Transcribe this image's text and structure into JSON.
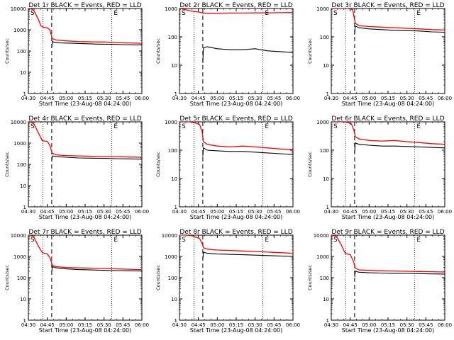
{
  "figure": {
    "x_tick_labels": [
      "04:30",
      "04:45",
      "05:00",
      "05:15",
      "05:30",
      "05:45",
      "06:00"
    ],
    "y_label": "Counts/sec",
    "x_label": "Start Time (23-Aug-08 04:24:00)",
    "corner_marks": {
      "left": "S",
      "right": "E"
    }
  },
  "colors": {
    "events": "#000000",
    "lld": "#ff0000",
    "axes": "#000000"
  },
  "chart_data": [
    {
      "type": "line",
      "title": "Det 1r  BLACK = Events, RED = LLD",
      "xlabel": "Start Time (23-Aug-08 04:24:00)",
      "ylabel": "Counts/sec",
      "x_unit": "minutes after 04:30",
      "xlim": [
        0,
        90
      ],
      "yscale": "log",
      "ylim": [
        1,
        10000
      ],
      "y_tick_labels": [
        "1",
        "10",
        "100",
        "1000",
        "10000"
      ],
      "x_tick_labels": [
        "04:30",
        "04:45",
        "05:00",
        "05:15",
        "05:30",
        "05:45",
        "06:00"
      ],
      "dotted_markers_x": [
        11.5,
        66
      ],
      "dashed_marker_x": 18.5,
      "series": [
        {
          "name": "LLD",
          "color": "#ff0000",
          "x": [
            0,
            4,
            8,
            10,
            12,
            15,
            17,
            18,
            19,
            22,
            30,
            40,
            50,
            60,
            70,
            80,
            90
          ],
          "y": [
            10000,
            9000,
            3000,
            1500,
            1300,
            1250,
            1000,
            600,
            380,
            330,
            300,
            280,
            270,
            265,
            250,
            240,
            230
          ]
        },
        {
          "name": "Events",
          "color": "#000000",
          "x": [
            18.5,
            19,
            20,
            25,
            35,
            45,
            55,
            65,
            75,
            85,
            90
          ],
          "y": [
            140,
            290,
            260,
            240,
            230,
            220,
            210,
            205,
            200,
            195,
            195
          ]
        }
      ]
    },
    {
      "type": "line",
      "title": "Det 2r  BLACK = Events, RED = LLD",
      "xlabel": "Start Time (23-Aug-08 04:24:00)",
      "ylabel": "Counts/sec",
      "x_unit": "minutes after 04:30",
      "xlim": [
        0,
        90
      ],
      "yscale": "log",
      "ylim": [
        1,
        1000
      ],
      "y_tick_labels": [
        "1",
        "10",
        "100",
        "1000"
      ],
      "x_tick_labels": [
        "04:30",
        "04:45",
        "05:00",
        "05:15",
        "05:30",
        "05:45",
        "06:00"
      ],
      "dotted_markers_x": [
        11.5,
        66
      ],
      "dashed_marker_x": 18.5,
      "series": [
        {
          "name": "LLD",
          "color": "#ff0000",
          "x": [
            0,
            5,
            10,
            15,
            18,
            22,
            30,
            40,
            50,
            60,
            70,
            80,
            90
          ],
          "y": [
            1000,
            900,
            800,
            760,
            700,
            680,
            680,
            690,
            690,
            700,
            700,
            710,
            720
          ]
        },
        {
          "name": "Events",
          "color": "#000000",
          "x": [
            18.5,
            19,
            22,
            30,
            40,
            50,
            60,
            70,
            80,
            90
          ],
          "y": [
            12,
            40,
            45,
            38,
            35,
            35,
            38,
            32,
            30,
            28
          ]
        }
      ]
    },
    {
      "type": "line",
      "title": "Det 3r  BLACK = Events, RED = LLD",
      "xlabel": "Start Time (23-Aug-08 04:24:00)",
      "ylabel": "Counts/sec",
      "x_unit": "minutes after 04:30",
      "xlim": [
        0,
        90
      ],
      "yscale": "log",
      "ylim": [
        1,
        1000
      ],
      "y_tick_labels": [
        "1",
        "10",
        "100",
        "1000"
      ],
      "x_tick_labels": [
        "04:30",
        "04:45",
        "05:00",
        "05:15",
        "05:30",
        "05:45",
        "06:00"
      ],
      "dotted_markers_x": [
        11.5,
        66
      ],
      "dashed_marker_x": 18.5,
      "series": [
        {
          "name": "LLD",
          "color": "#ff0000",
          "x": [
            0,
            8,
            14,
            17,
            19,
            22,
            30,
            40,
            50,
            60,
            70,
            80,
            90
          ],
          "y": [
            1000,
            1000,
            1000,
            900,
            300,
            250,
            230,
            220,
            210,
            200,
            190,
            180,
            175
          ]
        },
        {
          "name": "Events",
          "color": "#000000",
          "x": [
            18.5,
            19,
            22,
            30,
            40,
            50,
            60,
            70,
            80,
            90
          ],
          "y": [
            120,
            240,
            210,
            190,
            180,
            170,
            165,
            160,
            150,
            145
          ]
        }
      ]
    },
    {
      "type": "line",
      "title": "Det 4r  BLACK = Events, RED = LLD",
      "xlabel": "Start Time (23-Aug-08 04:24:00)",
      "ylabel": "Counts/sec",
      "x_unit": "minutes after 04:30",
      "xlim": [
        0,
        90
      ],
      "yscale": "log",
      "ylim": [
        1,
        10000
      ],
      "y_tick_labels": [
        "1",
        "10",
        "100",
        "1000",
        "10000"
      ],
      "x_tick_labels": [
        "04:30",
        "04:45",
        "05:00",
        "05:15",
        "05:30",
        "05:45",
        "06:00"
      ],
      "dotted_markers_x": [
        11.5,
        66
      ],
      "dashed_marker_x": 18.5,
      "series": [
        {
          "name": "LLD",
          "color": "#ff0000",
          "x": [
            0,
            4,
            8,
            11,
            15,
            17,
            18,
            19,
            22,
            30,
            40,
            50,
            60,
            70,
            80,
            90
          ],
          "y": [
            10000,
            9000,
            3000,
            1300,
            1200,
            800,
            500,
            330,
            280,
            260,
            250,
            240,
            235,
            230,
            220,
            215
          ]
        },
        {
          "name": "Events",
          "color": "#000000",
          "x": [
            18.5,
            19,
            22,
            30,
            40,
            50,
            60,
            70,
            80,
            90
          ],
          "y": [
            150,
            250,
            230,
            215,
            200,
            195,
            190,
            185,
            180,
            175
          ]
        }
      ]
    },
    {
      "type": "line",
      "title": "Det 5r  BLACK = Events, RED = LLD",
      "xlabel": "Start Time (23-Aug-08 04:24:00)",
      "ylabel": "Counts/sec",
      "x_unit": "minutes after 04:30",
      "xlim": [
        0,
        90
      ],
      "yscale": "log",
      "ylim": [
        1,
        1000
      ],
      "y_tick_labels": [
        "1",
        "10",
        "100",
        "1000"
      ],
      "x_tick_labels": [
        "04:30",
        "04:45",
        "05:00",
        "05:15",
        "05:30",
        "05:45",
        "06:00"
      ],
      "dotted_markers_x": [
        11.5,
        66
      ],
      "dashed_marker_x": 18.5,
      "series": [
        {
          "name": "LLD",
          "color": "#ff0000",
          "x": [
            0,
            8,
            13,
            16,
            18,
            19,
            22,
            30,
            40,
            50,
            60,
            70,
            80,
            90
          ],
          "y": [
            1000,
            1000,
            900,
            800,
            450,
            200,
            160,
            140,
            130,
            140,
            130,
            120,
            110,
            105
          ]
        },
        {
          "name": "Events",
          "color": "#000000",
          "x": [
            18.5,
            19,
            22,
            30,
            40,
            50,
            60,
            70,
            80,
            90
          ],
          "y": [
            60,
            120,
            100,
            95,
            90,
            90,
            85,
            80,
            75,
            70
          ]
        }
      ]
    },
    {
      "type": "line",
      "title": "Det 6r  BLACK = Events, RED = LLD",
      "xlabel": "Start Time (23-Aug-08 04:24:00)",
      "ylabel": "Counts/sec",
      "x_unit": "minutes after 04:30",
      "xlim": [
        0,
        90
      ],
      "yscale": "log",
      "ylim": [
        1,
        1000
      ],
      "y_tick_labels": [
        "1",
        "10",
        "100",
        "1000"
      ],
      "x_tick_labels": [
        "04:30",
        "04:45",
        "05:00",
        "05:15",
        "05:30",
        "05:45",
        "06:00"
      ],
      "dotted_markers_x": [
        11.5,
        66
      ],
      "dashed_marker_x": 18.5,
      "series": [
        {
          "name": "LLD",
          "color": "#ff0000",
          "x": [
            0,
            8,
            13,
            16,
            18,
            19,
            22,
            30,
            40,
            50,
            60,
            70,
            80,
            90
          ],
          "y": [
            1000,
            1000,
            950,
            850,
            500,
            300,
            250,
            220,
            210,
            220,
            200,
            185,
            170,
            160
          ]
        },
        {
          "name": "Events",
          "color": "#000000",
          "x": [
            18.5,
            19,
            22,
            30,
            40,
            50,
            60,
            70,
            80,
            90
          ],
          "y": [
            80,
            180,
            160,
            150,
            140,
            140,
            135,
            130,
            125,
            120
          ]
        }
      ]
    },
    {
      "type": "line",
      "title": "Det 7r  BLACK = Events, RED = LLD",
      "xlabel": "Start Time (23-Aug-08 04:24:00)",
      "ylabel": "Counts/sec",
      "x_unit": "minutes after 04:30",
      "xlim": [
        0,
        90
      ],
      "yscale": "log",
      "ylim": [
        1,
        10000
      ],
      "y_tick_labels": [
        "1",
        "10",
        "100",
        "1000",
        "10000"
      ],
      "x_tick_labels": [
        "04:30",
        "04:45",
        "05:00",
        "05:15",
        "05:30",
        "05:45",
        "06:00"
      ],
      "dotted_markers_x": [
        11.5,
        66
      ],
      "dashed_marker_x": 18.5,
      "series": [
        {
          "name": "LLD",
          "color": "#ff0000",
          "x": [
            0,
            4,
            8,
            11,
            15,
            17,
            18,
            19,
            22,
            30,
            40,
            50,
            60,
            70,
            80,
            90
          ],
          "y": [
            10000,
            9000,
            3000,
            1500,
            1300,
            900,
            600,
            380,
            330,
            300,
            290,
            280,
            270,
            260,
            250,
            240
          ]
        },
        {
          "name": "Events",
          "color": "#000000",
          "x": [
            18.5,
            19,
            22,
            30,
            40,
            50,
            60,
            70,
            80,
            90
          ],
          "y": [
            180,
            330,
            290,
            260,
            240,
            230,
            220,
            215,
            210,
            205
          ]
        }
      ]
    },
    {
      "type": "line",
      "title": "Det 8r  BLACK = Events, RED = LLD",
      "xlabel": "Start Time (23-Aug-08 04:24:00)",
      "ylabel": "Counts/sec",
      "x_unit": "minutes after 04:30",
      "xlim": [
        0,
        90
      ],
      "yscale": "log",
      "ylim": [
        1,
        10000
      ],
      "y_tick_labels": [
        "1",
        "10",
        "100",
        "1000",
        "10000"
      ],
      "x_tick_labels": [
        "04:30",
        "04:45",
        "05:00",
        "05:15",
        "05:30",
        "05:45",
        "06:00"
      ],
      "dotted_markers_x": [
        11.5,
        66
      ],
      "dashed_marker_x": 18.5,
      "series": [
        {
          "name": "LLD",
          "color": "#ff0000",
          "x": [
            0,
            5,
            10,
            13,
            16,
            18,
            19,
            22,
            30,
            40,
            50,
            60,
            70,
            80,
            90
          ],
          "y": [
            10000,
            10000,
            9500,
            8000,
            7000,
            4000,
            2600,
            2200,
            2000,
            1900,
            1800,
            1700,
            1600,
            1500,
            1400
          ]
        },
        {
          "name": "Events",
          "color": "#000000",
          "x": [
            18.5,
            19,
            22,
            30,
            40,
            50,
            60,
            70,
            80,
            90
          ],
          "y": [
            700,
            1600,
            1400,
            1300,
            1250,
            1200,
            1150,
            1100,
            1050,
            1000
          ]
        }
      ]
    },
    {
      "type": "line",
      "title": "Det 9r  BLACK = Events, RED = LLD",
      "xlabel": "Start Time (23-Aug-08 04:24:00)",
      "ylabel": "Counts/sec",
      "x_unit": "minutes after 04:30",
      "xlim": [
        0,
        90
      ],
      "yscale": "log",
      "ylim": [
        1,
        10000
      ],
      "y_tick_labels": [
        "1",
        "10",
        "100",
        "1000",
        "10000"
      ],
      "x_tick_labels": [
        "04:30",
        "04:45",
        "05:00",
        "05:15",
        "05:30",
        "05:45",
        "06:00"
      ],
      "dotted_markers_x": [
        11.5,
        66
      ],
      "dashed_marker_x": 18.5,
      "series": [
        {
          "name": "LLD",
          "color": "#ff0000",
          "x": [
            0,
            4,
            8,
            11,
            15,
            17,
            18,
            19,
            22,
            30,
            40,
            50,
            60,
            70,
            80,
            90
          ],
          "y": [
            10000,
            9000,
            3500,
            1400,
            1200,
            700,
            500,
            280,
            230,
            220,
            210,
            205,
            200,
            195,
            190,
            185
          ]
        },
        {
          "name": "Events",
          "color": "#000000",
          "x": [
            18.5,
            19,
            22,
            30,
            40,
            50,
            60,
            70,
            80,
            90
          ],
          "y": [
            110,
            200,
            180,
            170,
            165,
            160,
            158,
            155,
            150,
            148
          ]
        }
      ]
    }
  ]
}
